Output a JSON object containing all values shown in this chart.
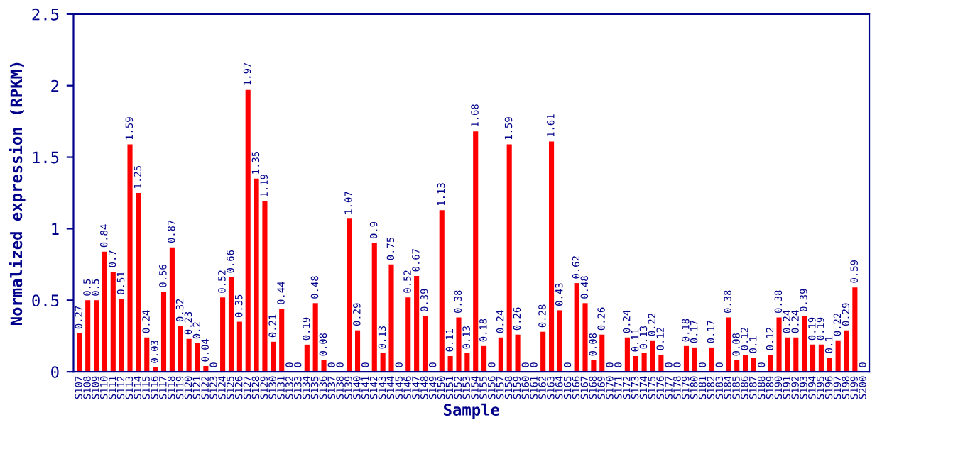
{
  "chart_data": {
    "type": "bar",
    "xlabel": "Sample",
    "ylabel": "Normalized expression (RPKM)",
    "categories": [
      "S107",
      "S108",
      "S109",
      "S110",
      "S111",
      "S112",
      "S113",
      "S114",
      "S115",
      "S116",
      "S117",
      "S118",
      "S119",
      "S120",
      "S121",
      "S122",
      "S123",
      "S124",
      "S125",
      "S126",
      "S127",
      "S128",
      "S129",
      "S130",
      "S131",
      "S132",
      "S133",
      "S134",
      "S135",
      "S136",
      "S137",
      "S138",
      "S139",
      "S140",
      "S141",
      "S142",
      "S143",
      "S144",
      "S145",
      "S146",
      "S147",
      "S148",
      "S149",
      "S150",
      "S151",
      "S152",
      "S153",
      "S154",
      "S155",
      "S156",
      "S157",
      "S158",
      "S159",
      "S160",
      "S161",
      "S162",
      "S163",
      "S164",
      "S165",
      "S166",
      "S167",
      "S168",
      "S169",
      "S170",
      "S171",
      "S172",
      "S173",
      "S174",
      "S175",
      "S176",
      "S177",
      "S178",
      "S179",
      "S180",
      "S181",
      "S182",
      "S183",
      "S184",
      "S185",
      "S186",
      "S187",
      "S188",
      "S189",
      "S190",
      "S191",
      "S192",
      "S193",
      "S194",
      "S195",
      "S196",
      "S197",
      "S198",
      "S199",
      "S200"
    ],
    "values": [
      0.27,
      0.5,
      0.5,
      0.84,
      0.7,
      0.51,
      1.59,
      1.25,
      0.24,
      0.03,
      0.56,
      0.87,
      0.32,
      0.23,
      0.2,
      0.04,
      0,
      0.52,
      0.66,
      0.35,
      1.97,
      1.35,
      1.19,
      0.21,
      0.44,
      0,
      0,
      0.19,
      0.48,
      0.08,
      0,
      0,
      1.07,
      0.29,
      0,
      0.9,
      0.13,
      0.75,
      0,
      0.52,
      0.67,
      0.39,
      0,
      1.13,
      0.11,
      0.38,
      0.13,
      1.68,
      0.18,
      0,
      0.24,
      1.59,
      0.26,
      0,
      0,
      0.28,
      1.61,
      0.43,
      0,
      0.62,
      0.48,
      0.08,
      0.26,
      0,
      0,
      0.24,
      0.11,
      0.13,
      0.22,
      0.12,
      0,
      0,
      0.18,
      0.17,
      0,
      0.17,
      0,
      0.38,
      0.08,
      0.12,
      0.1,
      0,
      0.12,
      0.38,
      0.24,
      0.24,
      0.39,
      0.19,
      0.19,
      0.1,
      0.22,
      0.29,
      0.59,
      0
    ],
    "color": "#ff0000",
    "ylim": [
      0,
      2.5
    ],
    "yticks": [
      0,
      0.5,
      1,
      1.5,
      2,
      2.5
    ],
    "data_labels": true,
    "grid": false
  }
}
